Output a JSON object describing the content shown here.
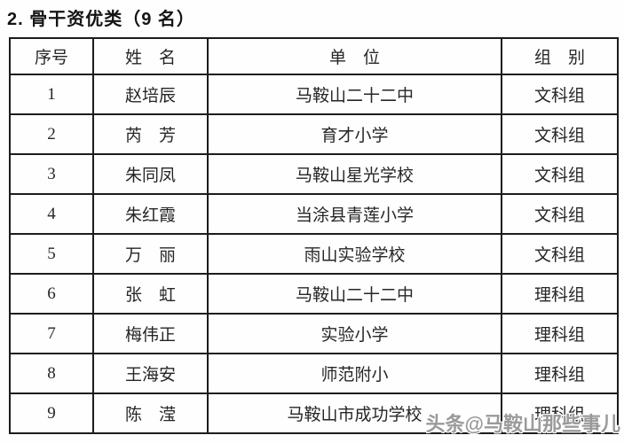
{
  "page": {
    "title": "2. 骨干资优类（9 名）",
    "watermark": "头条@马鞍山那些事儿"
  },
  "colors": {
    "background": "#fefefe",
    "border": "#1c1c1c",
    "text": "#262626",
    "watermark": "#9a9a9a"
  },
  "table": {
    "headers": [
      "序号",
      "姓　名",
      "单　位",
      "组　别"
    ],
    "rows": [
      {
        "no": "1",
        "name": "赵培辰",
        "unit": "马鞍山二十二中",
        "group": "文科组"
      },
      {
        "no": "2",
        "name": "芮　芳",
        "unit": "育才小学",
        "group": "文科组"
      },
      {
        "no": "3",
        "name": "朱同凤",
        "unit": "马鞍山星光学校",
        "group": "文科组"
      },
      {
        "no": "4",
        "name": "朱红霞",
        "unit": "当涂县青莲小学",
        "group": "文科组"
      },
      {
        "no": "5",
        "name": "万　丽",
        "unit": "雨山实验学校",
        "group": "文科组"
      },
      {
        "no": "6",
        "name": "张　虹",
        "unit": "马鞍山二十二中",
        "group": "理科组"
      },
      {
        "no": "7",
        "name": "梅伟正",
        "unit": "实验小学",
        "group": "理科组"
      },
      {
        "no": "8",
        "name": "王海安",
        "unit": "师范附小",
        "group": "理科组"
      },
      {
        "no": "9",
        "name": "陈　滢",
        "unit": "马鞍山市成功学校",
        "group": "理科组"
      }
    ]
  }
}
